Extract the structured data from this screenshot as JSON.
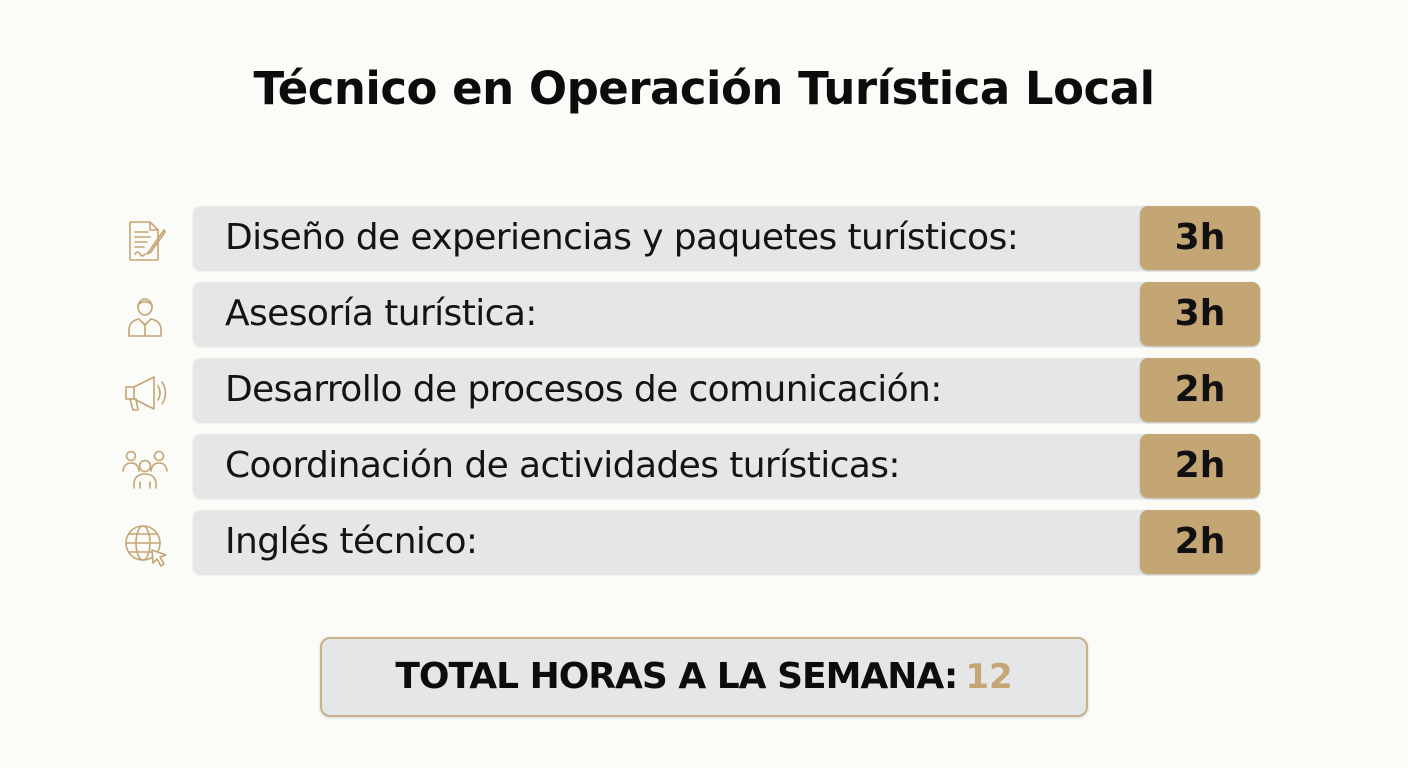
{
  "title": "Técnico en Operación Turística Local",
  "accent_color": "#c4a574",
  "bar_color": "#e4e6e8",
  "icon_color": "#c4a574",
  "subjects": [
    {
      "icon": "document-pen-icon",
      "label": "Diseño de experiencias y paquetes turísticos:",
      "hours": "3h"
    },
    {
      "icon": "advisor-person-icon",
      "label": "Asesoría turística:",
      "hours": "3h"
    },
    {
      "icon": "megaphone-icon",
      "label": "Desarrollo de procesos de comunicación:",
      "hours": "2h"
    },
    {
      "icon": "group-people-icon",
      "label": "Coordinación de actividades turísticas:",
      "hours": "2h"
    },
    {
      "icon": "globe-cursor-icon",
      "label": "Inglés técnico:",
      "hours": "2h"
    }
  ],
  "total": {
    "label": "TOTAL HORAS A LA SEMANA:",
    "value": "12"
  }
}
